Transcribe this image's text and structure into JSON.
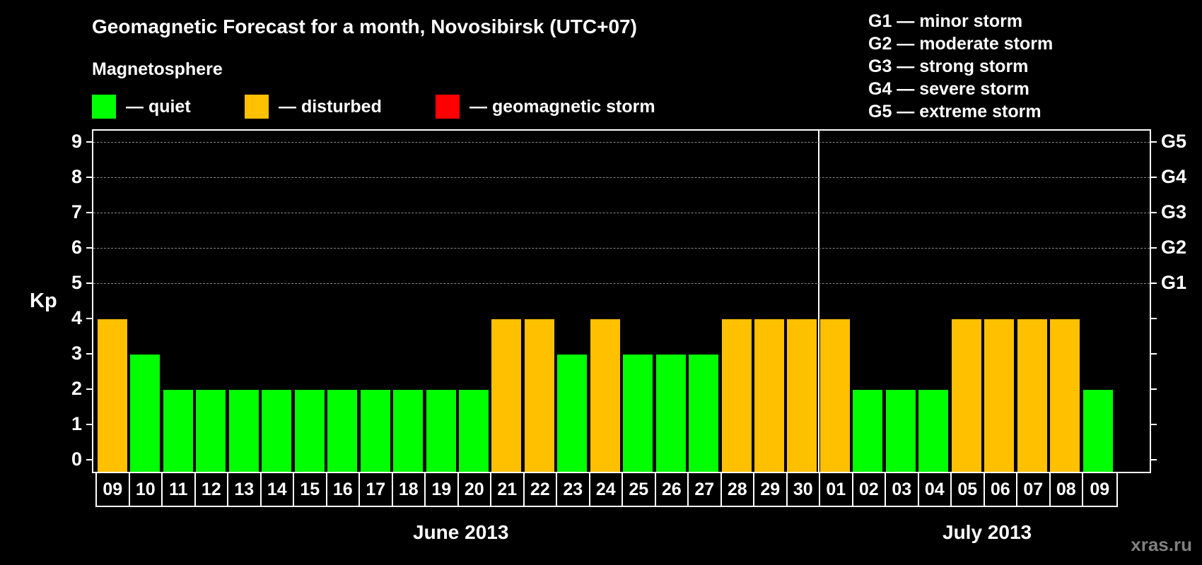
{
  "header": {
    "title": "Geomagnetic Forecast for a month, Novosibirsk (UTC+07)",
    "subtitle": "Magnetosphere"
  },
  "legend": {
    "items": [
      {
        "label": "— quiet",
        "color": "#00ff00"
      },
      {
        "label": "— disturbed",
        "color": "#ffc000"
      },
      {
        "label": "— geomagnetic storm",
        "color": "#ff0000"
      }
    ],
    "storm_scale": [
      "G1 — minor storm",
      "G2 — moderate storm",
      "G3 — strong storm",
      "G4 — severe storm",
      "G5 — extreme storm"
    ]
  },
  "axis": {
    "ylabel": "Kp",
    "left_ticks": [
      "0",
      "1",
      "2",
      "3",
      "4",
      "5",
      "6",
      "7",
      "8",
      "9"
    ],
    "right_ticks": [
      {
        "kp": 5,
        "label": "G1"
      },
      {
        "kp": 6,
        "label": "G2"
      },
      {
        "kp": 7,
        "label": "G3"
      },
      {
        "kp": 8,
        "label": "G4"
      },
      {
        "kp": 9,
        "label": "G5"
      }
    ]
  },
  "months": {
    "first": "June 2013",
    "second": "July 2013"
  },
  "watermark": "xras.ru",
  "chart_data": {
    "type": "bar",
    "title": "Geomagnetic Forecast for a month, Novosibirsk (UTC+07)",
    "xlabel": "June 2013 / July 2013",
    "ylabel": "Kp",
    "ylim": [
      0,
      9
    ],
    "grid": true,
    "legend_position": "top",
    "categories": [
      "09",
      "10",
      "11",
      "12",
      "13",
      "14",
      "15",
      "16",
      "17",
      "18",
      "19",
      "20",
      "21",
      "22",
      "23",
      "24",
      "25",
      "26",
      "27",
      "28",
      "29",
      "30",
      "01",
      "02",
      "03",
      "04",
      "05",
      "06",
      "07",
      "08",
      "09"
    ],
    "full_dates": [
      "2013-06-09",
      "2013-06-10",
      "2013-06-11",
      "2013-06-12",
      "2013-06-13",
      "2013-06-14",
      "2013-06-15",
      "2013-06-16",
      "2013-06-17",
      "2013-06-18",
      "2013-06-19",
      "2013-06-20",
      "2013-06-21",
      "2013-06-22",
      "2013-06-23",
      "2013-06-24",
      "2013-06-25",
      "2013-06-26",
      "2013-06-27",
      "2013-06-28",
      "2013-06-29",
      "2013-06-30",
      "2013-07-01",
      "2013-07-02",
      "2013-07-03",
      "2013-07-04",
      "2013-07-05",
      "2013-07-06",
      "2013-07-07",
      "2013-07-08",
      "2013-07-09"
    ],
    "values": [
      4,
      3,
      2,
      2,
      2,
      2,
      2,
      2,
      2,
      2,
      2,
      2,
      4,
      4,
      3,
      4,
      3,
      3,
      3,
      4,
      4,
      4,
      4,
      2,
      2,
      2,
      4,
      4,
      4,
      4,
      2
    ],
    "status": [
      "disturbed",
      "quiet",
      "quiet",
      "quiet",
      "quiet",
      "quiet",
      "quiet",
      "quiet",
      "quiet",
      "quiet",
      "quiet",
      "quiet",
      "disturbed",
      "disturbed",
      "quiet",
      "disturbed",
      "quiet",
      "quiet",
      "quiet",
      "disturbed",
      "disturbed",
      "disturbed",
      "disturbed",
      "quiet",
      "quiet",
      "quiet",
      "disturbed",
      "disturbed",
      "disturbed",
      "disturbed",
      "quiet"
    ],
    "colors": {
      "quiet": "#00ff00",
      "disturbed": "#ffc000",
      "storm": "#ff0000"
    },
    "month_divider_after_index": 21
  }
}
